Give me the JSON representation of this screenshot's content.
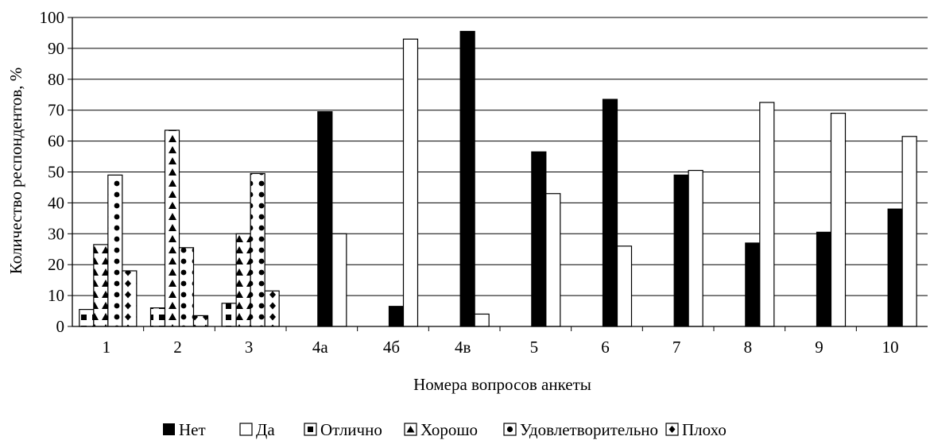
{
  "chart_data": {
    "type": "bar",
    "title": "",
    "xlabel": "Номера вопросов анкеты",
    "ylabel": "Количество респондентов, %",
    "ylim": [
      0,
      100
    ],
    "yticks": [
      0,
      10,
      20,
      30,
      40,
      50,
      60,
      70,
      80,
      90,
      100
    ],
    "grid": true,
    "legend_position": "bottom",
    "categories": [
      "1",
      "2",
      "3",
      "4а",
      "4б",
      "4в",
      "5",
      "6",
      "7",
      "8",
      "9",
      "10"
    ],
    "series": [
      {
        "name": "Нет",
        "pattern": "solid-black",
        "values": [
          null,
          null,
          null,
          69.5,
          6.5,
          95.5,
          56.5,
          73.5,
          49,
          27,
          30.5,
          38
        ]
      },
      {
        "name": "Да",
        "pattern": "solid-white",
        "values": [
          null,
          null,
          null,
          30,
          93,
          4,
          43,
          26,
          50.5,
          72.5,
          69,
          61.5
        ]
      },
      {
        "name": "Отлично",
        "pattern": "squares",
        "values": [
          5.5,
          6,
          7.5,
          null,
          null,
          null,
          null,
          null,
          null,
          null,
          null,
          null
        ]
      },
      {
        "name": "Хорошо",
        "pattern": "triangles",
        "values": [
          26.5,
          63.5,
          30,
          null,
          null,
          null,
          null,
          null,
          null,
          null,
          null,
          null
        ]
      },
      {
        "name": "Удовлетворительно",
        "pattern": "circles",
        "values": [
          49,
          25.5,
          49.5,
          null,
          null,
          null,
          null,
          null,
          null,
          null,
          null,
          null
        ]
      },
      {
        "name": "Плохо",
        "pattern": "diamonds",
        "values": [
          18,
          3.5,
          11.5,
          null,
          null,
          null,
          null,
          null,
          null,
          null,
          null,
          null
        ]
      }
    ]
  }
}
